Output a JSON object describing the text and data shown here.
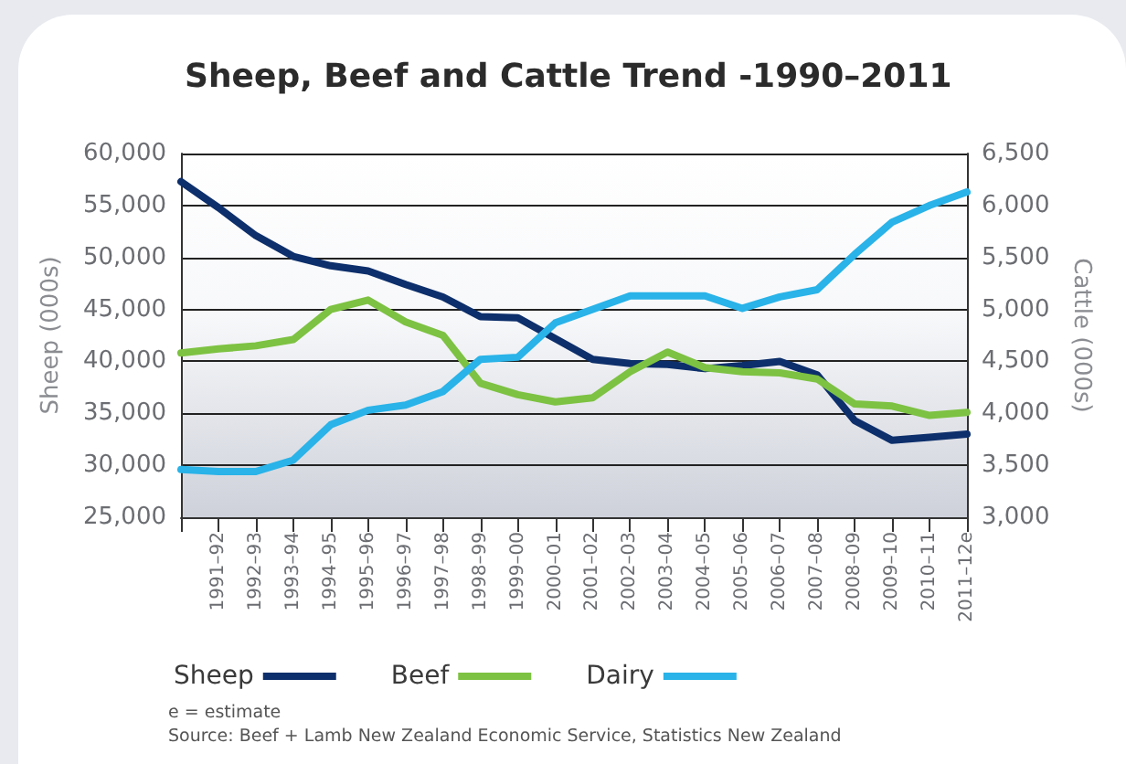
{
  "chart_data": {
    "type": "line",
    "title": "Sheep, Beef and Cattle Trend -1990–2011",
    "ylabel": "Sheep (000s)",
    "y2label": "Cattle (000s)",
    "categories": [
      null,
      "1991–92",
      "1992–93",
      "1993–94",
      "1994–95",
      "1995–96",
      "1996–97",
      "1997–98",
      "1998–99",
      "1999–00",
      "2000–01",
      "2001–02",
      "2002–03",
      "2003–04",
      "2004–05",
      "2005–06",
      "2006–07",
      "2007–08",
      "2008–09",
      "2009–10",
      "2010–11",
      "2011–12e"
    ],
    "series": [
      {
        "name": "Sheep",
        "color": "#0d2f6b",
        "values": [
          57300,
          54800,
          52100,
          50100,
          49200,
          48700,
          47400,
          46200,
          44300,
          44200,
          42200,
          40200,
          39800,
          39700,
          39300,
          39600,
          40000,
          38700,
          34300,
          32400,
          32700,
          33000
        ]
      },
      {
        "name": "Beef",
        "color": "#7dc242",
        "axis": "y2",
        "values": [
          4580,
          4620,
          4650,
          4710,
          5000,
          5090,
          4880,
          4750,
          4290,
          4180,
          4110,
          4150,
          4400,
          4590,
          4440,
          4400,
          4390,
          4330,
          4090,
          4070,
          3980,
          4010
        ]
      },
      {
        "name": "Dairy",
        "color": "#29b3e8",
        "axis": "y2",
        "values": [
          3460,
          3440,
          3440,
          3550,
          3890,
          4030,
          4080,
          4210,
          4520,
          4540,
          4870,
          5000,
          5130,
          5130,
          5130,
          5010,
          5120,
          5190,
          5530,
          5840,
          6000,
          6130
        ]
      }
    ],
    "ylim": [
      25000,
      60000
    ],
    "yticks": [
      {
        "value": 25000,
        "label": "25,000"
      },
      {
        "value": 30000,
        "label": "30,000"
      },
      {
        "value": 35000,
        "label": "35,000"
      },
      {
        "value": 40000,
        "label": "40,000"
      },
      {
        "value": 45000,
        "label": "45,000"
      },
      {
        "value": 50000,
        "label": "50,000"
      },
      {
        "value": 55000,
        "label": "55,000"
      },
      {
        "value": 60000,
        "label": "60,000"
      }
    ],
    "y2lim": [
      3000,
      6500
    ],
    "y2ticks": [
      {
        "value": 3000,
        "label": "3,000"
      },
      {
        "value": 3500,
        "label": "3,500"
      },
      {
        "value": 4000,
        "label": "4,000"
      },
      {
        "value": 4500,
        "label": "4,500"
      },
      {
        "value": 5000,
        "label": "5,000"
      },
      {
        "value": 5500,
        "label": "5,500"
      },
      {
        "value": 6000,
        "label": "6,000"
      },
      {
        "value": 6500,
        "label": "6,500"
      }
    ],
    "grid": "y",
    "legend": "bottom left",
    "marker": "none",
    "line_style": "solid",
    "annotations": [
      "e = estimate",
      "Source: Beef + Lamb New Zealand Economic Service, Statistics New Zealand"
    ]
  }
}
